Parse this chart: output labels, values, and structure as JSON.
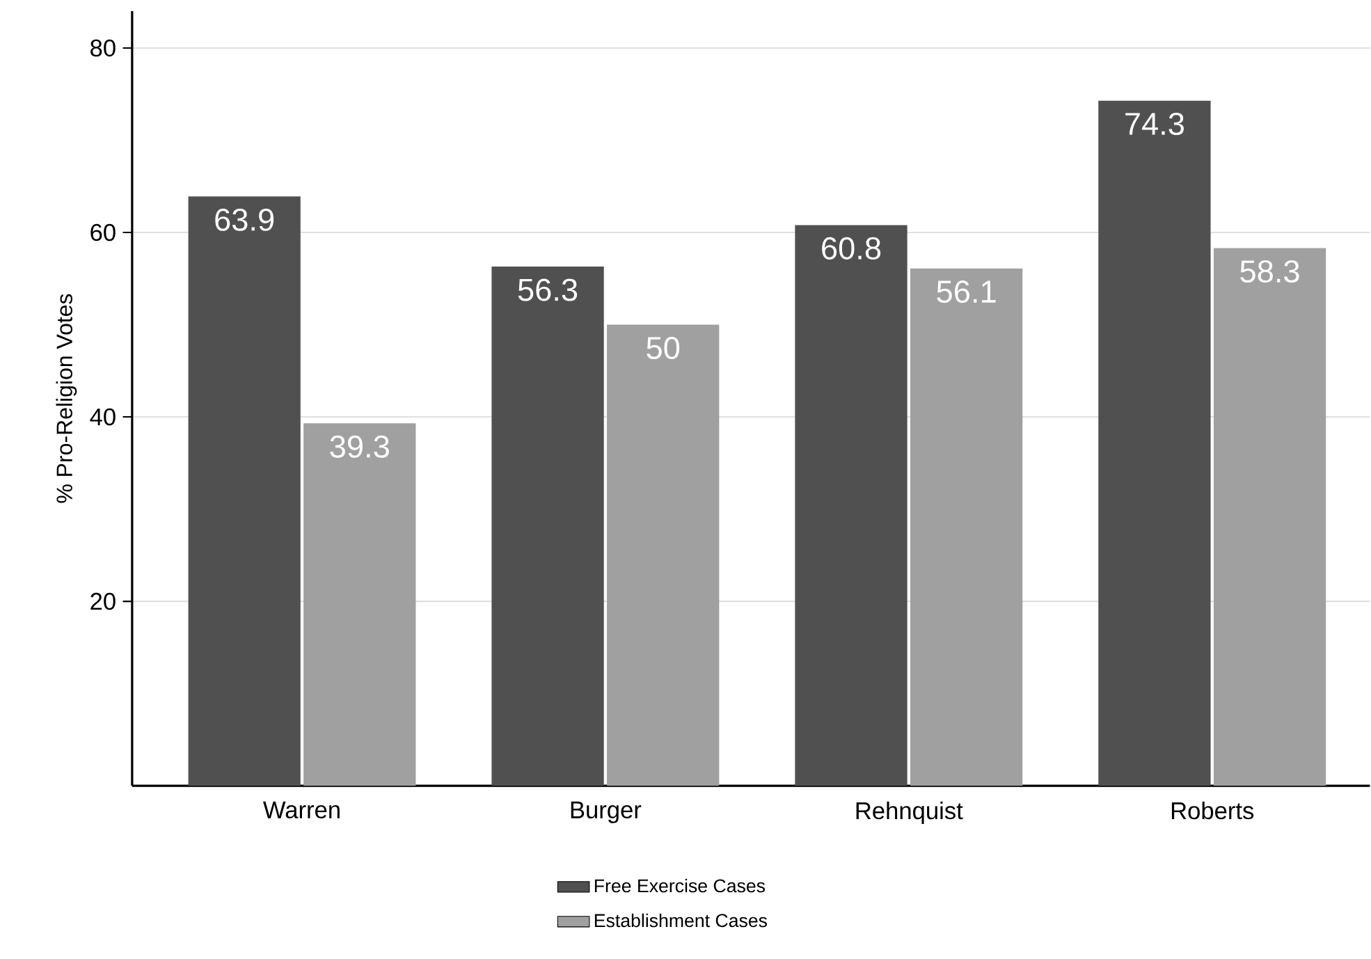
{
  "chart_data": {
    "type": "bar",
    "ylabel": "% Pro-Religion Votes",
    "categories": [
      "Warren",
      "Burger",
      "Rehnquist",
      "Roberts"
    ],
    "series": [
      {
        "name": "Free Exercise Cases",
        "color": "#505050",
        "values": [
          63.9,
          56.3,
          60.8,
          74.3
        ],
        "value_labels": [
          "63.9",
          "56.3",
          "60.8",
          "74.3"
        ]
      },
      {
        "name": "Establishment Cases",
        "color": "#a0a0a0",
        "values": [
          39.3,
          50,
          56.1,
          58.3
        ],
        "value_labels": [
          "39.3",
          "50",
          "56.1",
          "58.3"
        ]
      }
    ],
    "ylim": [
      0,
      84
    ],
    "yticks": [
      20,
      40,
      60,
      80
    ],
    "grid": "y",
    "legend": "bottom"
  }
}
